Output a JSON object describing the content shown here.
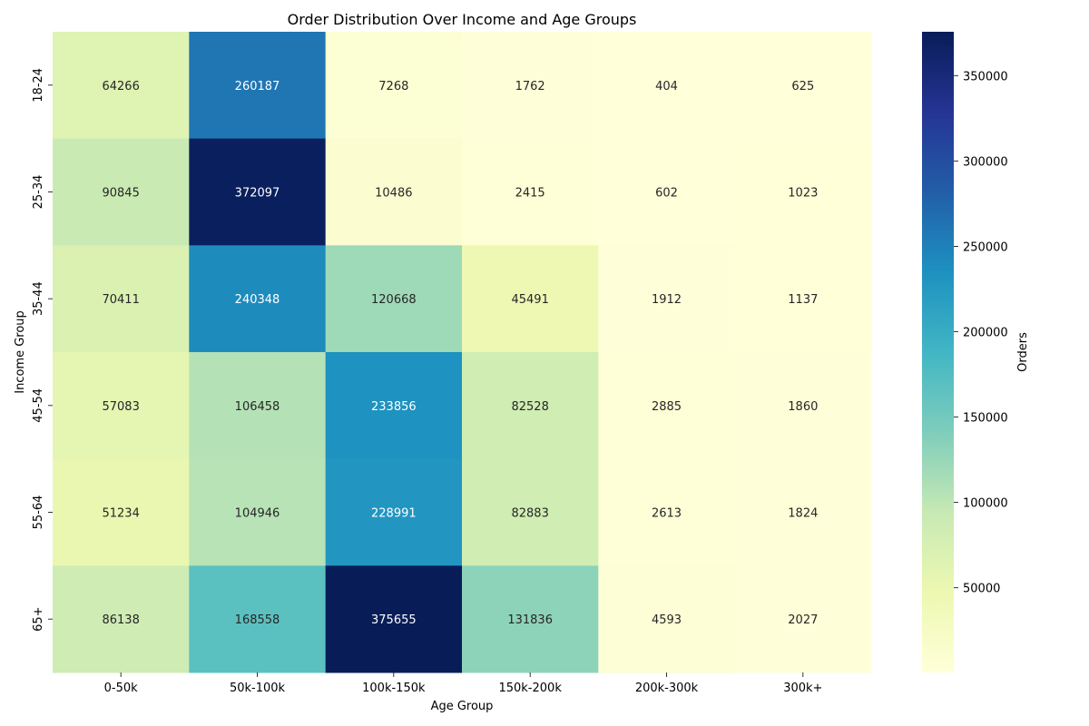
{
  "chart_data": {
    "type": "heatmap",
    "title": "Order Distribution Over Income and Age Groups",
    "xlabel": "Age Group",
    "ylabel": "Income Group",
    "x_categories": [
      "0-50k",
      "50k-100k",
      "100k-150k",
      "150k-200k",
      "200k-300k",
      "300k+"
    ],
    "y_categories": [
      "18-24",
      "25-34",
      "35-44",
      "45-54",
      "55-64",
      "65+"
    ],
    "values": [
      [
        64266,
        260187,
        7268,
        1762,
        404,
        625
      ],
      [
        90845,
        372097,
        10486,
        2415,
        602,
        1023
      ],
      [
        70411,
        240348,
        120668,
        45491,
        1912,
        1137
      ],
      [
        57083,
        106458,
        233856,
        82528,
        2885,
        1860
      ],
      [
        51234,
        104946,
        228991,
        82883,
        2613,
        1824
      ],
      [
        86138,
        168558,
        375655,
        131836,
        4593,
        2027
      ]
    ],
    "colorbar": {
      "label": "Orders",
      "ticks": [
        50000,
        100000,
        150000,
        200000,
        250000,
        300000,
        350000
      ],
      "tick_labels": [
        "50000",
        "100000",
        "150000",
        "200000",
        "250000",
        "300000",
        "350000"
      ],
      "vmin": 404,
      "vmax": 375655,
      "colormap": "YlGnBu"
    },
    "grid": false
  }
}
